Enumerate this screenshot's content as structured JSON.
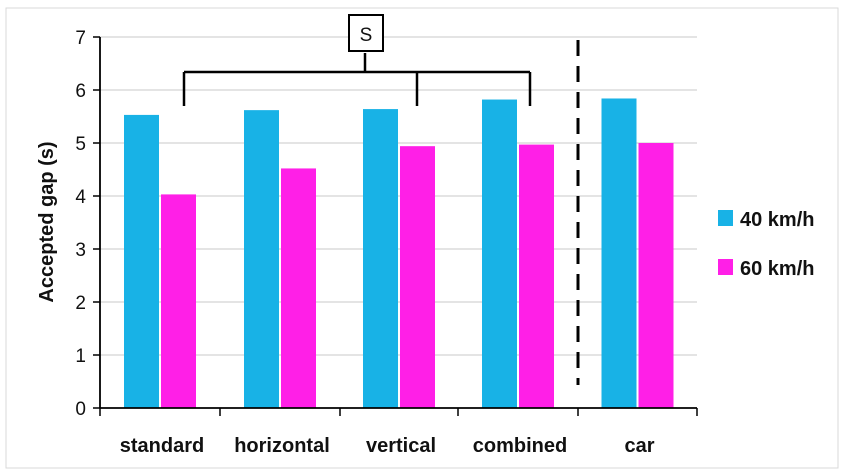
{
  "chart_data": {
    "type": "bar",
    "categories": [
      "standard",
      "horizontal",
      "vertical",
      "combined",
      "car"
    ],
    "series": [
      {
        "name": "40 km/h",
        "color": "#18b2e6",
        "values": [
          5.53,
          5.62,
          5.64,
          5.82,
          5.84
        ]
      },
      {
        "name": "60 km/h",
        "color": "#ff1fe7",
        "values": [
          4.03,
          4.52,
          4.94,
          4.97,
          5.0
        ]
      }
    ],
    "ylabel": "Accepted gap (s)",
    "ylim": [
      0,
      7
    ],
    "yticks": [
      0,
      1,
      2,
      3,
      4,
      5,
      6,
      7
    ],
    "grid": true,
    "legend": "right",
    "annotation": {
      "label": "S",
      "connects": [
        "standard",
        "vertical",
        "combined"
      ]
    },
    "separator_before": "car"
  }
}
